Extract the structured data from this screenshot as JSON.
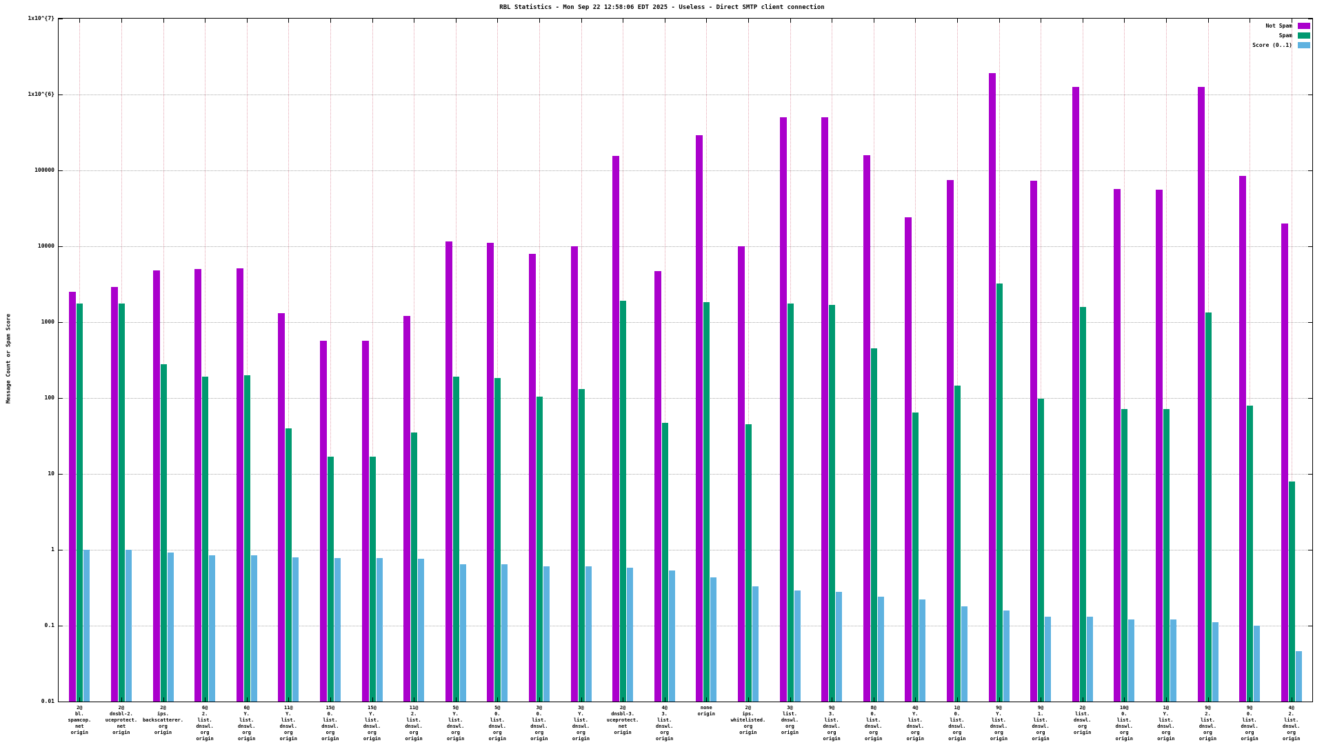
{
  "title": "RBL Statistics - Mon Sep 22 12:58:06 EDT 2025 - Useless - Direct SMTP client connection",
  "ylabel": "Message Count or Spam Score",
  "chart_data": {
    "type": "bar",
    "y_scale": "log",
    "ylim": [
      0.01,
      10000000
    ],
    "ytick_labels": [
      "0.01",
      "0.1",
      "1",
      "10",
      "100",
      "1000",
      "10000",
      "100000",
      "1x10^{6}",
      "1x10^{7}"
    ],
    "grid": true,
    "legend_position": "top-right",
    "categories": [
      [
        "2@",
        "bl.",
        "spamcop.",
        "net",
        "origin"
      ],
      [
        "2@",
        "dnsbl-2.",
        "uceprotect.",
        "net",
        "origin"
      ],
      [
        "2@",
        "ips.",
        "backscatterer.",
        "org",
        "origin"
      ],
      [
        "6@",
        "2.",
        "list.",
        "dnswl.",
        "org",
        "origin"
      ],
      [
        "6@",
        "Y.",
        "list.",
        "dnswl.",
        "org",
        "origin"
      ],
      [
        "11@",
        "Y.",
        "list.",
        "dnswl.",
        "org",
        "origin"
      ],
      [
        "15@",
        "0.",
        "list.",
        "dnswl.",
        "org",
        "origin"
      ],
      [
        "15@",
        "Y.",
        "list.",
        "dnswl.",
        "org",
        "origin"
      ],
      [
        "11@",
        "2.",
        "list.",
        "dnswl.",
        "org",
        "origin"
      ],
      [
        "5@",
        "Y.",
        "list.",
        "dnswl.",
        "org",
        "origin"
      ],
      [
        "5@",
        "0.",
        "list.",
        "dnswl.",
        "org",
        "origin"
      ],
      [
        "3@",
        "0.",
        "list.",
        "dnswl.",
        "org",
        "origin"
      ],
      [
        "3@",
        "Y.",
        "list.",
        "dnswl.",
        "org",
        "origin"
      ],
      [
        "2@",
        "dnsbl-3.",
        "uceprotect.",
        "net",
        "origin"
      ],
      [
        "4@",
        "3.",
        "list.",
        "dnswl.",
        "org",
        "origin"
      ],
      [
        "none",
        "origin"
      ],
      [
        "2@",
        "ips.",
        "whitelisted.",
        "org",
        "origin"
      ],
      [
        "3@",
        "list.",
        "dnswl.",
        "org",
        "origin"
      ],
      [
        "9@",
        "3.",
        "list.",
        "dnswl.",
        "org",
        "origin"
      ],
      [
        "8@",
        "0.",
        "list.",
        "dnswl.",
        "org",
        "origin"
      ],
      [
        "4@",
        "Y.",
        "list.",
        "dnswl.",
        "org",
        "origin"
      ],
      [
        "1@",
        "0.",
        "list.",
        "dnswl.",
        "org",
        "origin"
      ],
      [
        "9@",
        "Y.",
        "list.",
        "dnswl.",
        "org",
        "origin"
      ],
      [
        "9@",
        "1.",
        "list.",
        "dnswl.",
        "org",
        "origin"
      ],
      [
        "2@",
        "list.",
        "dnswl.",
        "org",
        "origin"
      ],
      [
        "10@",
        "0.",
        "list.",
        "dnswl.",
        "org",
        "origin"
      ],
      [
        "1@",
        "Y.",
        "list.",
        "dnswl.",
        "org",
        "origin"
      ],
      [
        "9@",
        "2.",
        "list.",
        "dnswl.",
        "org",
        "origin"
      ],
      [
        "9@",
        "0.",
        "list.",
        "dnswl.",
        "org",
        "origin"
      ],
      [
        "4@",
        "2.",
        "list.",
        "dnswl.",
        "org",
        "origin"
      ]
    ],
    "series": [
      {
        "name": "Not Spam",
        "color": "#aa00cc",
        "values": [
          2500,
          2900,
          4800,
          5000,
          5100,
          1300,
          570,
          570,
          1200,
          11500,
          11000,
          8000,
          10000,
          155000,
          4700,
          290000,
          10000,
          500000,
          500000,
          160000,
          24000,
          75000,
          1900000,
          73000,
          1250000,
          57000,
          56000,
          1250000,
          85000,
          20000
        ]
      },
      {
        "name": "Spam",
        "color": "#009970",
        "values": [
          1750,
          1750,
          280,
          190,
          200,
          40,
          17,
          17,
          35,
          190,
          185,
          105,
          130,
          1900,
          47,
          1850,
          45,
          1750,
          1700,
          450,
          65,
          145,
          3200,
          97,
          1600,
          72,
          71,
          1350,
          80,
          8
        ]
      },
      {
        "name": "Score (0..1)",
        "color": "#5eb2e0",
        "values": [
          1.0,
          1.0,
          0.92,
          0.85,
          0.84,
          0.8,
          0.78,
          0.78,
          0.76,
          0.65,
          0.65,
          0.6,
          0.6,
          0.58,
          0.53,
          0.43,
          0.33,
          0.29,
          0.28,
          0.24,
          0.22,
          0.18,
          0.16,
          0.13,
          0.13,
          0.12,
          0.12,
          0.11,
          0.1,
          0.046
        ]
      }
    ]
  }
}
